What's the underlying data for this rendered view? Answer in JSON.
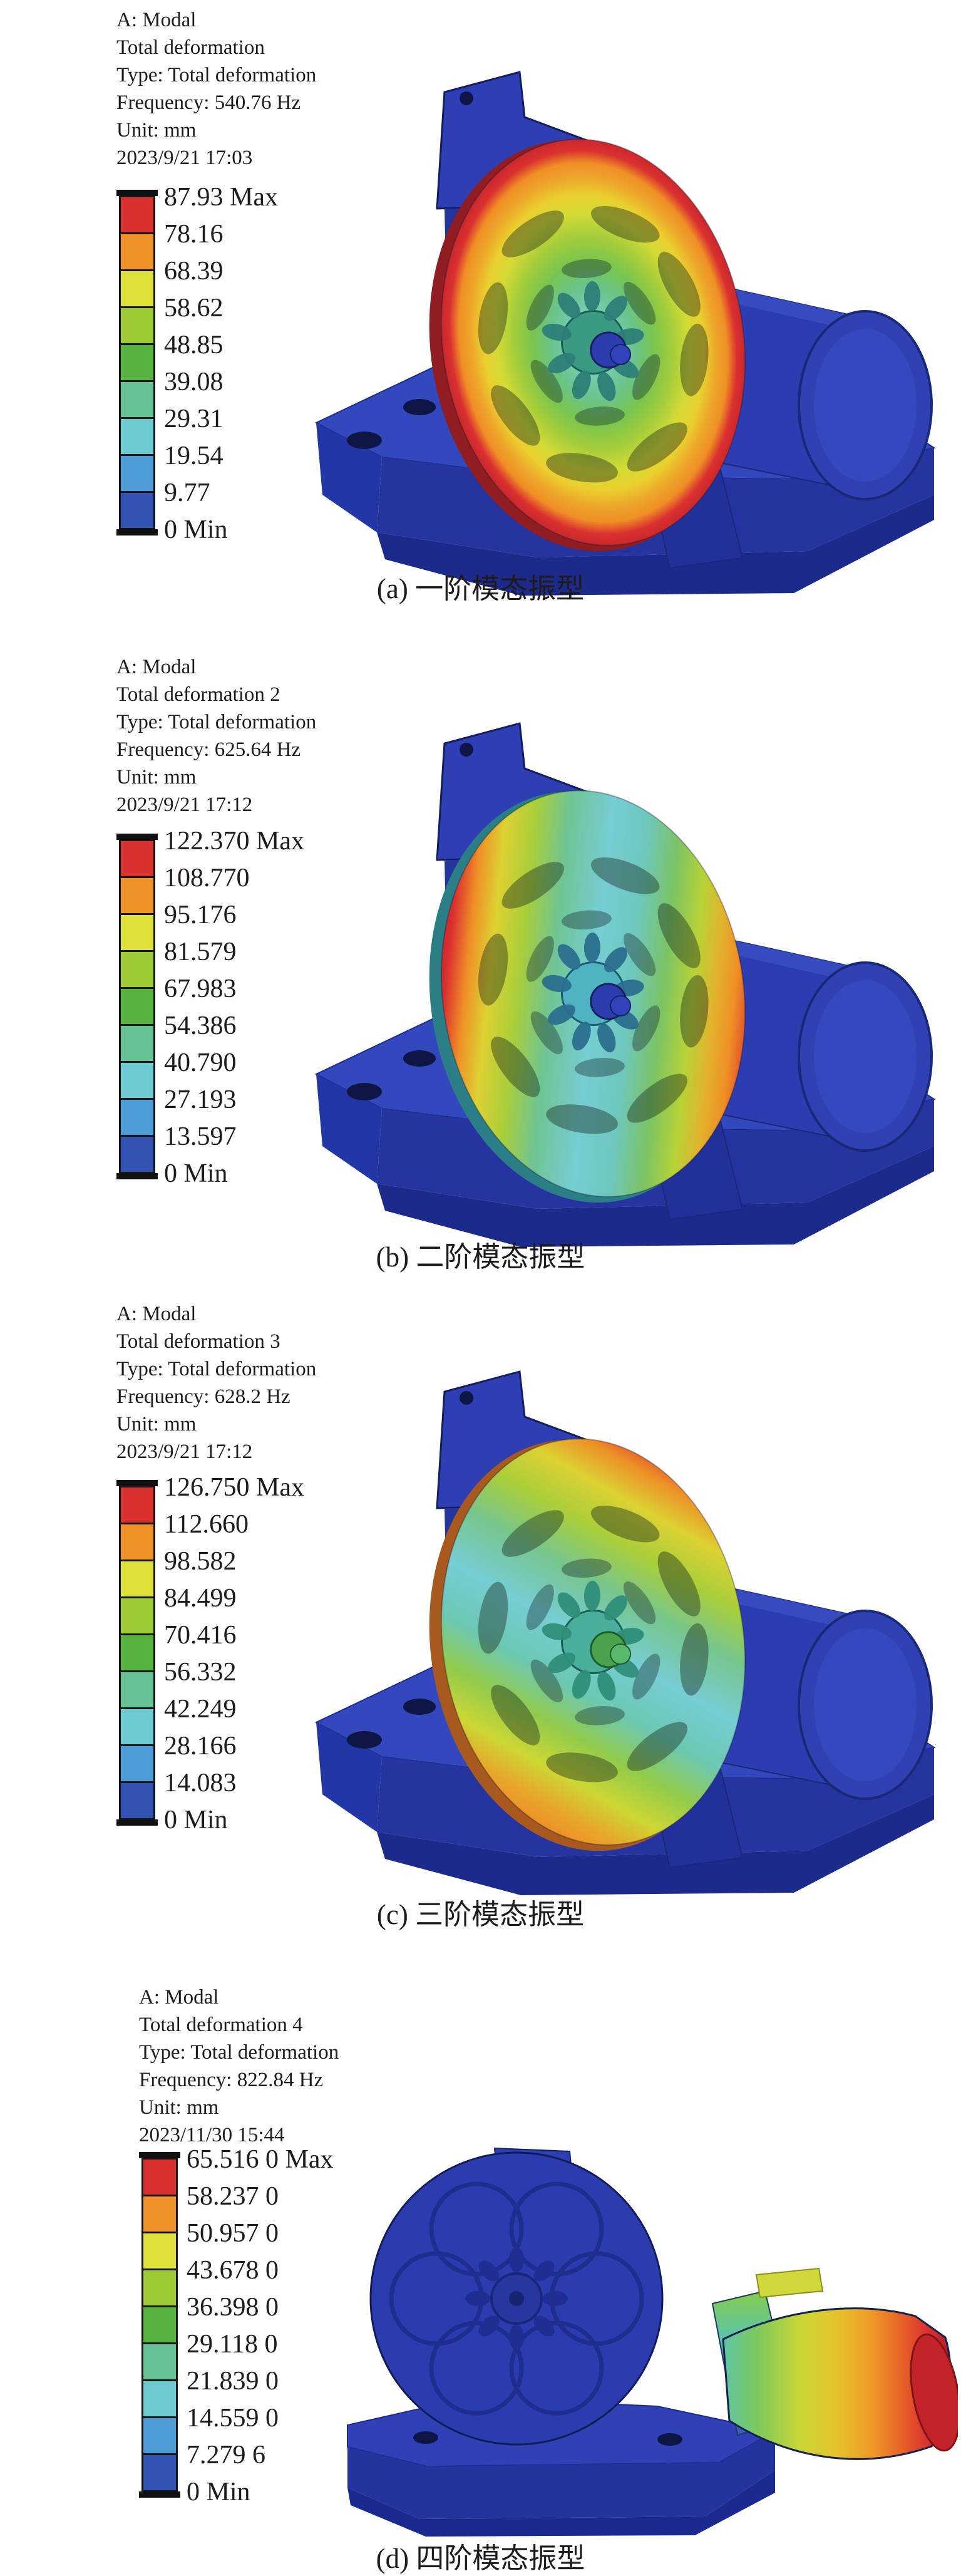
{
  "figure_colors": {
    "body_blue": "#2b3db0",
    "body_blue_light": "#3a4dc2",
    "body_blue_dark": "#1c2a8c",
    "hole_dark": "#0e1645",
    "text": "#1f1b1c",
    "legend_frame": "#151515"
  },
  "panels": [
    {
      "id": "a",
      "info": {
        "app": "A: Modal",
        "result": "Total deformation",
        "type": "Type: Total deformation",
        "frequency": "Frequency: 540.76 Hz",
        "unit": "Unit: mm",
        "datetime": "2023/9/21 17:03"
      },
      "legend": {
        "labels": [
          "87.93 Max",
          "78.16",
          "68.39",
          "58.62",
          "48.85",
          "39.08",
          "29.31",
          "19.54",
          "9.77",
          "0 Min"
        ],
        "band_colors": [
          "#d93030",
          "#ef9227",
          "#dde139",
          "#9ecb35",
          "#56b33d",
          "#66c294",
          "#6fcbd2",
          "#4d9cd8",
          "#3353b4"
        ]
      },
      "caption": "(a) 一阶模态振型"
    },
    {
      "id": "b",
      "info": {
        "app": "A: Modal",
        "result": "Total deformation 2",
        "type": "Type: Total deformation",
        "frequency": "Frequency: 625.64 Hz",
        "unit": "Unit: mm",
        "datetime": "2023/9/21 17:12"
      },
      "legend": {
        "labels": [
          "122.370 Max",
          "108.770",
          "95.176",
          "81.579",
          "67.983",
          "54.386",
          "40.790",
          "27.193",
          "13.597",
          "0 Min"
        ],
        "band_colors": [
          "#d93030",
          "#ef9227",
          "#dde139",
          "#9ecb35",
          "#56b33d",
          "#66c294",
          "#6fcbd2",
          "#4d9cd8",
          "#3353b4"
        ]
      },
      "caption": "(b) 二阶模态振型"
    },
    {
      "id": "c",
      "info": {
        "app": "A: Modal",
        "result": "Total deformation 3",
        "type": "Type: Total deformation",
        "frequency": "Frequency: 628.2 Hz",
        "unit": "Unit: mm",
        "datetime": "2023/9/21 17:12"
      },
      "legend": {
        "labels": [
          "126.750 Max",
          "112.660",
          "98.582",
          "84.499",
          "70.416",
          "56.332",
          "42.249",
          "28.166",
          "14.083",
          "0 Min"
        ],
        "band_colors": [
          "#d93030",
          "#ef9227",
          "#dde139",
          "#9ecb35",
          "#56b33d",
          "#66c294",
          "#6fcbd2",
          "#4d9cd8",
          "#3353b4"
        ]
      },
      "caption": "(c) 三阶模态振型"
    },
    {
      "id": "d",
      "info": {
        "app": "A: Modal",
        "result": "Total deformation 4",
        "type": "Type: Total deformation",
        "frequency": "Frequency: 822.84 Hz",
        "unit": "Unit: mm",
        "datetime": "2023/11/30 15:44"
      },
      "legend": {
        "labels": [
          "65.516 0 Max",
          "58.237 0",
          "50.957 0",
          "43.678 0",
          "36.398 0",
          "29.118 0",
          "21.839 0",
          "14.559 0",
          "7.279 6",
          "0 Min"
        ],
        "band_colors": [
          "#d93030",
          "#ef9227",
          "#dde139",
          "#9ecb35",
          "#56b33d",
          "#66c294",
          "#6fcbd2",
          "#4d9cd8",
          "#3353b4"
        ]
      },
      "caption": "(d) 四阶模态振型"
    }
  ],
  "chart_data": [
    {
      "type": "heatmap",
      "title": "(a) 一阶模态振型",
      "subtitle": "A: Modal — Total deformation",
      "frequency_hz": 540.76,
      "unit": "mm",
      "datetime": "2023/9/21 17:03",
      "min_deformation": 0,
      "max_deformation": 87.93,
      "scale_ticks": [
        0,
        9.77,
        19.54,
        29.31,
        39.08,
        48.85,
        58.62,
        68.39,
        78.16,
        87.93
      ],
      "legend_position": "left"
    },
    {
      "type": "heatmap",
      "title": "(b) 二阶模态振型",
      "subtitle": "A: Modal — Total deformation 2",
      "frequency_hz": 625.64,
      "unit": "mm",
      "datetime": "2023/9/21 17:12",
      "min_deformation": 0,
      "max_deformation": 122.37,
      "scale_ticks": [
        0,
        13.597,
        27.193,
        40.79,
        54.386,
        67.983,
        81.579,
        95.176,
        108.77,
        122.37
      ],
      "legend_position": "left"
    },
    {
      "type": "heatmap",
      "title": "(c) 三阶模态振型",
      "subtitle": "A: Modal — Total deformation 3",
      "frequency_hz": 628.2,
      "unit": "mm",
      "datetime": "2023/9/21 17:12",
      "min_deformation": 0,
      "max_deformation": 126.75,
      "scale_ticks": [
        0,
        14.083,
        28.166,
        42.249,
        56.332,
        70.416,
        84.499,
        98.582,
        112.66,
        126.75
      ],
      "legend_position": "left"
    },
    {
      "type": "heatmap",
      "title": "(d) 四阶模态振型",
      "subtitle": "A: Modal — Total deformation 4",
      "frequency_hz": 822.84,
      "unit": "mm",
      "datetime": "2023/11/30 15:44",
      "min_deformation": 0,
      "max_deformation": 65.516,
      "scale_ticks": [
        0,
        7.2796,
        14.559,
        21.839,
        29.118,
        36.398,
        43.678,
        50.957,
        58.237,
        65.516
      ],
      "legend_position": "left"
    }
  ]
}
